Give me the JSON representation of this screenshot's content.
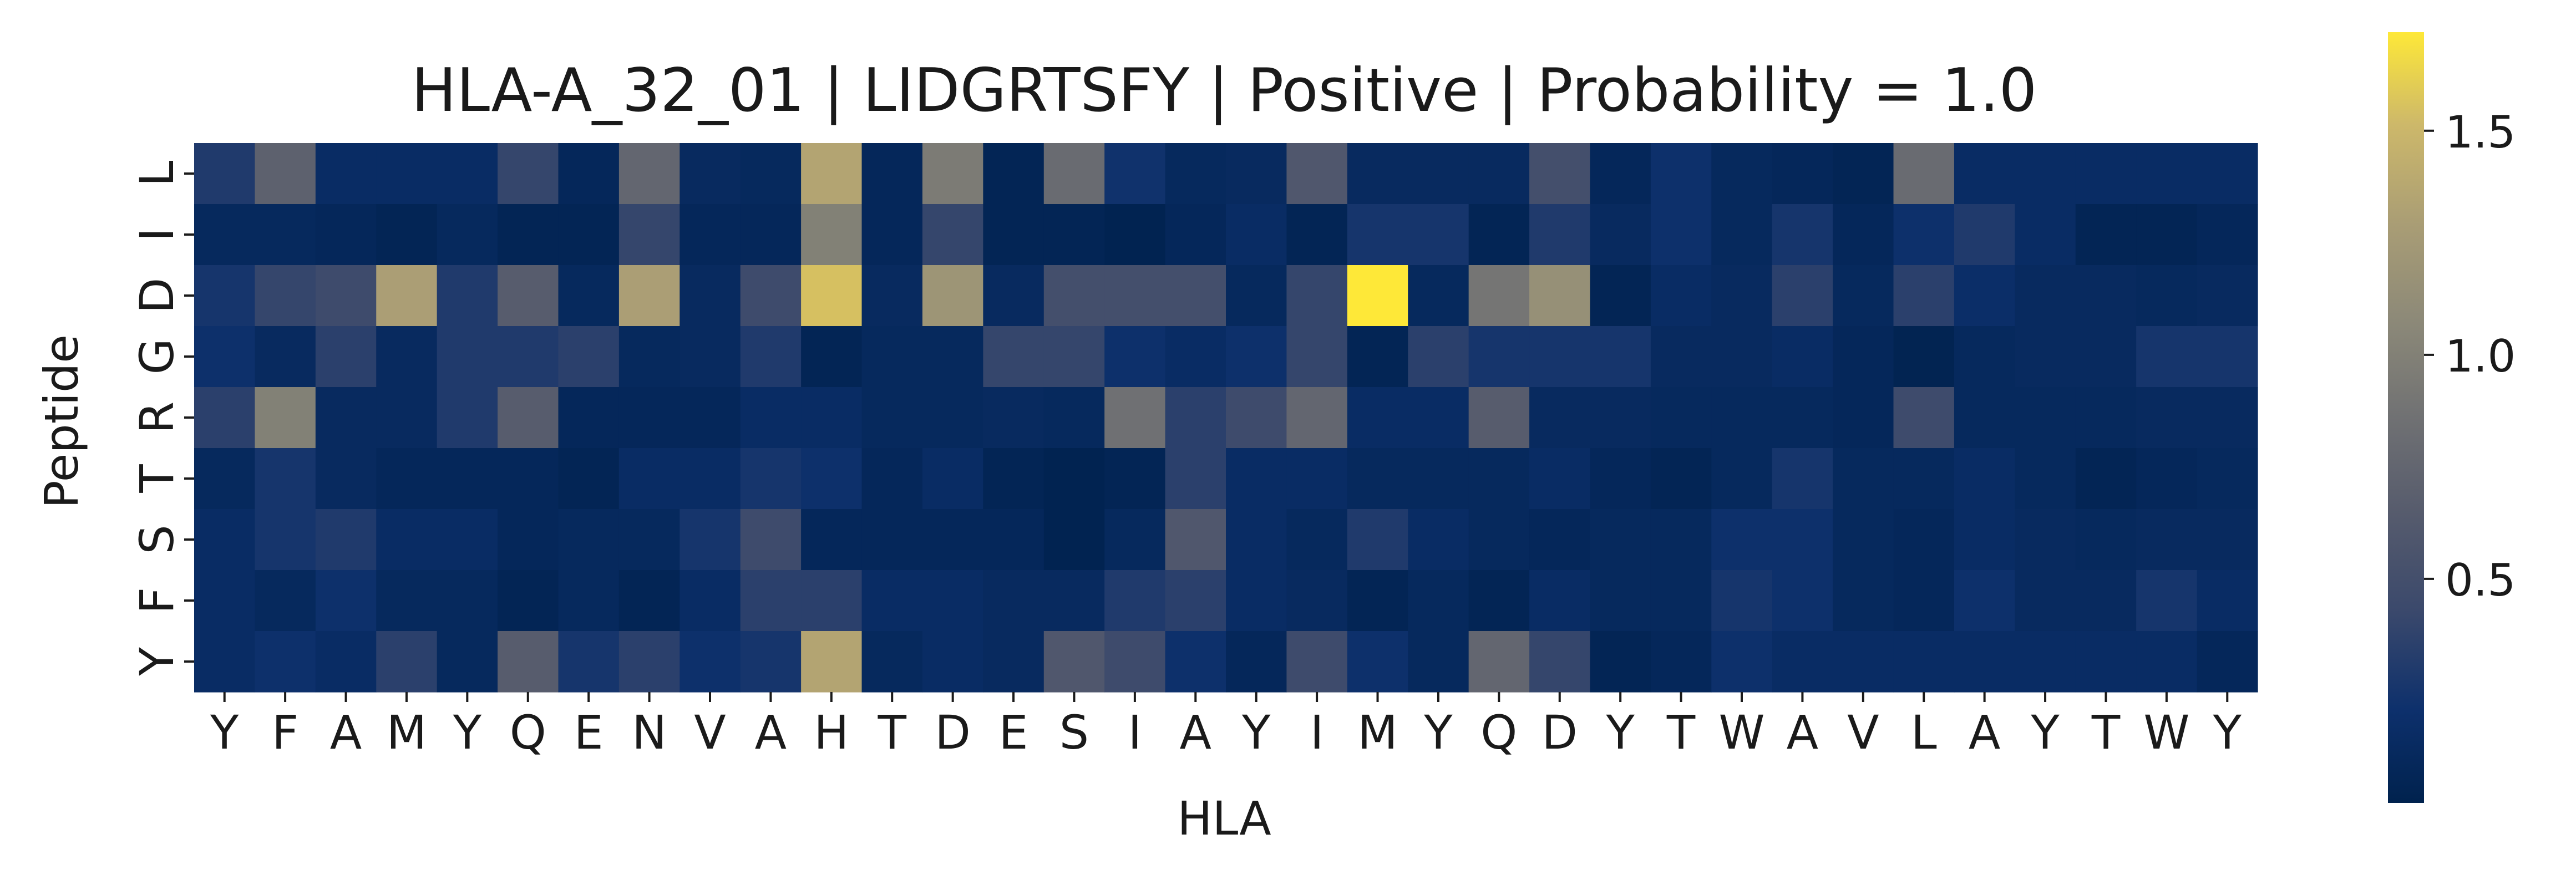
{
  "chart_data": {
    "type": "heatmap",
    "title": "HLA-A_32_01 | LIDGRTSFY | Positive | Probability = 1.0",
    "xlabel": "HLA",
    "ylabel": "Peptide",
    "x_tick_labels": [
      "Y",
      "F",
      "A",
      "M",
      "Y",
      "Q",
      "E",
      "N",
      "V",
      "A",
      "H",
      "T",
      "D",
      "E",
      "S",
      "I",
      "A",
      "Y",
      "I",
      "M",
      "Y",
      "Q",
      "D",
      "Y",
      "T",
      "W",
      "A",
      "V",
      "L",
      "A",
      "Y",
      "T",
      "W",
      "Y"
    ],
    "y_tick_labels": [
      "L",
      "I",
      "D",
      "G",
      "R",
      "T",
      "S",
      "F",
      "Y"
    ],
    "colormap": "cividis",
    "colorbar": {
      "vmin": 0.0,
      "vmax": 1.72,
      "ticks": [
        0.5,
        1.0,
        1.5
      ],
      "tick_labels": [
        "0.5",
        "1.0",
        "1.5"
      ]
    },
    "values": [
      [
        0.3,
        0.7,
        0.15,
        0.15,
        0.15,
        0.4,
        0.08,
        0.75,
        0.12,
        0.1,
        1.35,
        0.08,
        0.95,
        0.05,
        0.8,
        0.22,
        0.1,
        0.12,
        0.6,
        0.12,
        0.12,
        0.12,
        0.5,
        0.08,
        0.2,
        0.1,
        0.08,
        0.05,
        0.8,
        0.15,
        0.15,
        0.15,
        0.15,
        0.15
      ],
      [
        0.1,
        0.1,
        0.08,
        0.05,
        0.1,
        0.05,
        0.05,
        0.4,
        0.08,
        0.08,
        1.0,
        0.08,
        0.4,
        0.05,
        0.05,
        0.02,
        0.08,
        0.15,
        0.05,
        0.25,
        0.25,
        0.05,
        0.3,
        0.12,
        0.2,
        0.1,
        0.25,
        0.08,
        0.2,
        0.3,
        0.15,
        0.05,
        0.05,
        0.08
      ],
      [
        0.25,
        0.4,
        0.45,
        1.3,
        0.3,
        0.65,
        0.1,
        1.3,
        0.12,
        0.45,
        1.55,
        0.12,
        1.2,
        0.12,
        0.5,
        0.5,
        0.5,
        0.1,
        0.4,
        1.72,
        0.1,
        0.9,
        1.15,
        0.05,
        0.15,
        0.12,
        0.35,
        0.1,
        0.35,
        0.18,
        0.12,
        0.12,
        0.1,
        0.12
      ],
      [
        0.2,
        0.12,
        0.35,
        0.12,
        0.3,
        0.3,
        0.35,
        0.1,
        0.12,
        0.3,
        0.05,
        0.1,
        0.1,
        0.4,
        0.4,
        0.2,
        0.15,
        0.2,
        0.4,
        0.05,
        0.35,
        0.25,
        0.25,
        0.25,
        0.12,
        0.12,
        0.15,
        0.08,
        0.03,
        0.1,
        0.12,
        0.12,
        0.25,
        0.25
      ],
      [
        0.35,
        1.0,
        0.12,
        0.12,
        0.3,
        0.65,
        0.08,
        0.08,
        0.08,
        0.15,
        0.15,
        0.1,
        0.1,
        0.12,
        0.1,
        0.85,
        0.35,
        0.45,
        0.75,
        0.15,
        0.15,
        0.65,
        0.12,
        0.12,
        0.1,
        0.1,
        0.1,
        0.08,
        0.45,
        0.1,
        0.1,
        0.1,
        0.12,
        0.12
      ],
      [
        0.1,
        0.25,
        0.12,
        0.08,
        0.08,
        0.08,
        0.05,
        0.15,
        0.15,
        0.25,
        0.2,
        0.08,
        0.15,
        0.05,
        0.02,
        0.05,
        0.35,
        0.15,
        0.15,
        0.1,
        0.1,
        0.1,
        0.15,
        0.08,
        0.05,
        0.1,
        0.25,
        0.1,
        0.1,
        0.15,
        0.1,
        0.05,
        0.08,
        0.1
      ],
      [
        0.15,
        0.25,
        0.3,
        0.15,
        0.15,
        0.08,
        0.1,
        0.1,
        0.25,
        0.45,
        0.08,
        0.08,
        0.08,
        0.08,
        0.02,
        0.1,
        0.6,
        0.15,
        0.1,
        0.3,
        0.15,
        0.1,
        0.08,
        0.1,
        0.1,
        0.2,
        0.2,
        0.1,
        0.08,
        0.15,
        0.12,
        0.1,
        0.12,
        0.12
      ],
      [
        0.15,
        0.1,
        0.2,
        0.1,
        0.1,
        0.05,
        0.1,
        0.05,
        0.15,
        0.35,
        0.35,
        0.15,
        0.15,
        0.12,
        0.12,
        0.3,
        0.35,
        0.15,
        0.12,
        0.05,
        0.1,
        0.05,
        0.15,
        0.1,
        0.1,
        0.25,
        0.2,
        0.1,
        0.08,
        0.2,
        0.12,
        0.12,
        0.25,
        0.15
      ],
      [
        0.15,
        0.2,
        0.15,
        0.35,
        0.1,
        0.65,
        0.25,
        0.35,
        0.2,
        0.25,
        1.35,
        0.1,
        0.15,
        0.12,
        0.6,
        0.45,
        0.2,
        0.08,
        0.45,
        0.2,
        0.1,
        0.75,
        0.4,
        0.05,
        0.08,
        0.2,
        0.15,
        0.15,
        0.15,
        0.15,
        0.15,
        0.15,
        0.15,
        0.08
      ]
    ]
  }
}
